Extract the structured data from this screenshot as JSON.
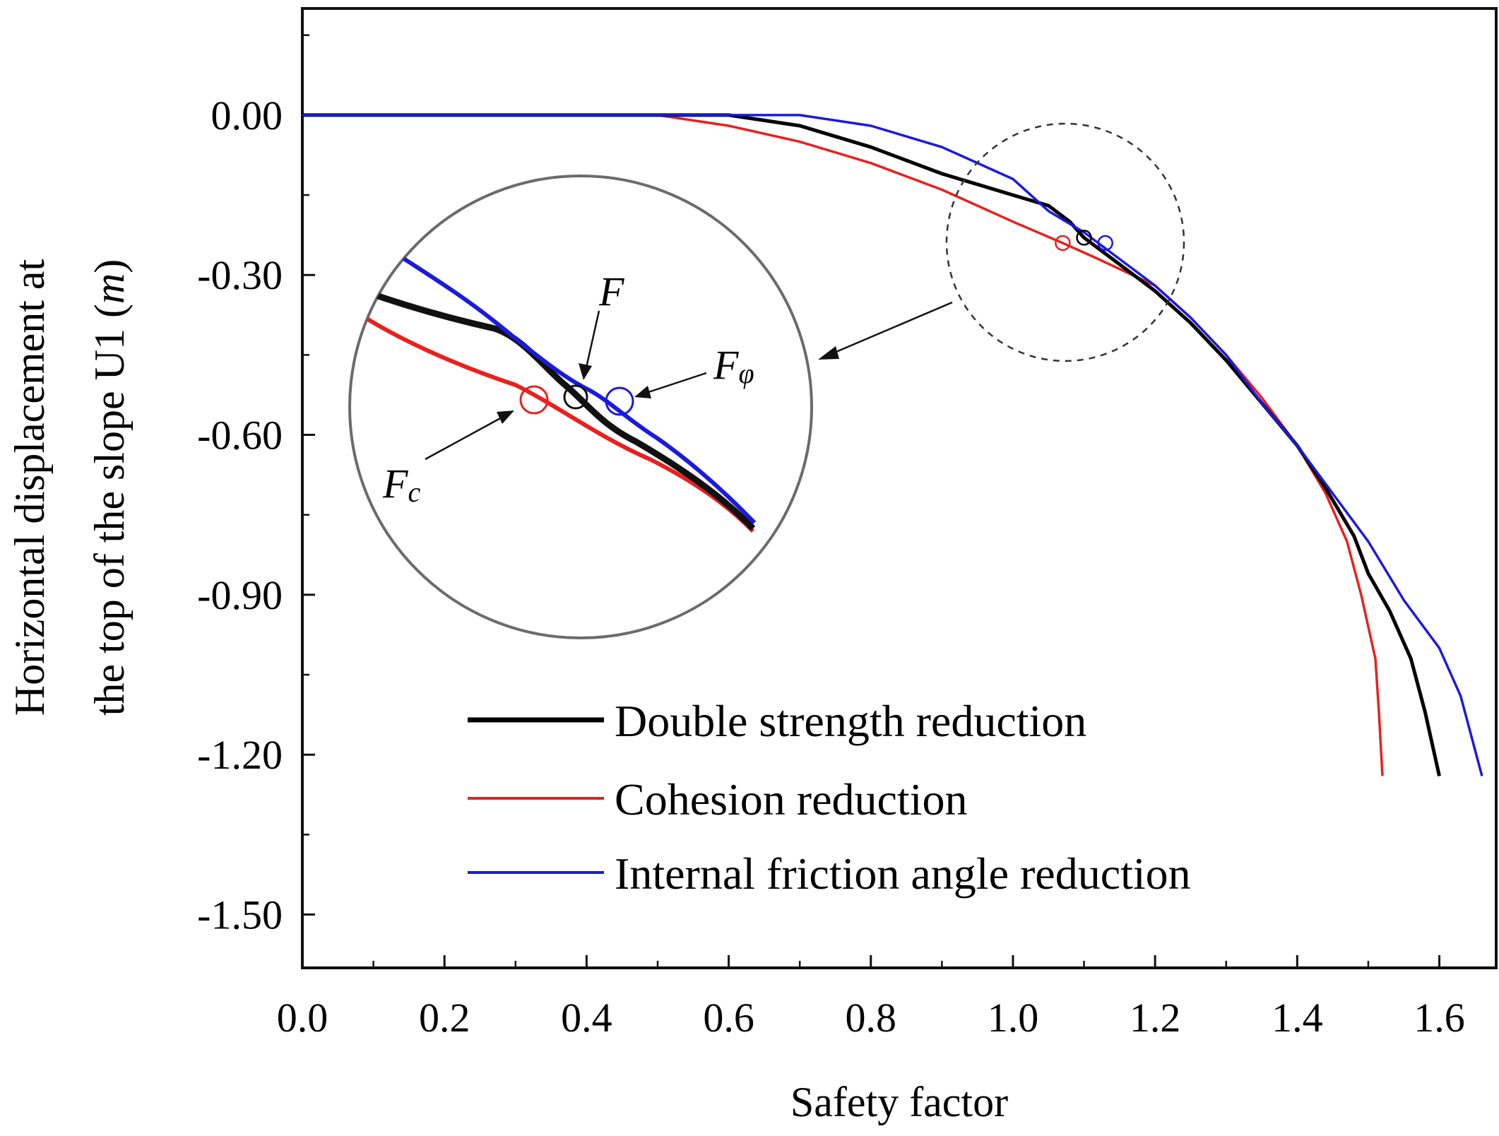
{
  "chart_data": {
    "type": "line",
    "title": "",
    "xlabel": "Safety factor",
    "ylabel_line1": "Horizontal displacement at",
    "ylabel_line2_prefix": "the top of the slope U1 (",
    "ylabel_unit": "m",
    "ylabel_line2_suffix": ")",
    "xlim": [
      0.0,
      1.68
    ],
    "ylim": [
      -1.6,
      0.2
    ],
    "xticks": [
      0.0,
      0.2,
      0.4,
      0.6,
      0.8,
      1.0,
      1.2,
      1.4,
      1.6
    ],
    "xtick_labels": [
      "0.0",
      "0.2",
      "0.4",
      "0.6",
      "0.8",
      "1.0",
      "1.2",
      "1.4",
      "1.6"
    ],
    "yticks": [
      0.0,
      -0.3,
      -0.6,
      -0.9,
      -1.2,
      -1.5
    ],
    "ytick_labels": [
      "0.00",
      "-0.30",
      "-0.60",
      "-0.90",
      "-1.20",
      "-1.50"
    ],
    "legend_position": "bottom-center",
    "series": [
      {
        "name": "Double strength reduction",
        "color": "#000000",
        "x": [
          0.0,
          0.4,
          0.6,
          0.7,
          0.8,
          0.9,
          1.0,
          1.05,
          1.08,
          1.1,
          1.12,
          1.15,
          1.2,
          1.25,
          1.3,
          1.35,
          1.4,
          1.44,
          1.48,
          1.5,
          1.53,
          1.56,
          1.58,
          1.6
        ],
        "y": [
          0.0,
          0.0,
          0.0,
          -0.02,
          -0.06,
          -0.11,
          -0.15,
          -0.17,
          -0.2,
          -0.23,
          -0.25,
          -0.28,
          -0.33,
          -0.39,
          -0.46,
          -0.54,
          -0.62,
          -0.7,
          -0.79,
          -0.86,
          -0.93,
          -1.02,
          -1.12,
          -1.24
        ]
      },
      {
        "name": "Cohesion reduction",
        "color": "#e8211f",
        "x": [
          0.0,
          0.4,
          0.5,
          0.6,
          0.7,
          0.8,
          0.9,
          1.0,
          1.07,
          1.12,
          1.2,
          1.25,
          1.3,
          1.35,
          1.4,
          1.44,
          1.47,
          1.49,
          1.51,
          1.515,
          1.52
        ],
        "y": [
          0.0,
          0.0,
          0.0,
          -0.02,
          -0.05,
          -0.09,
          -0.14,
          -0.2,
          -0.24,
          -0.27,
          -0.32,
          -0.38,
          -0.45,
          -0.53,
          -0.62,
          -0.71,
          -0.8,
          -0.9,
          -1.02,
          -1.12,
          -1.24
        ]
      },
      {
        "name": "Internal friction angle reduction",
        "color": "#1a1adf",
        "x": [
          0.0,
          0.6,
          0.7,
          0.8,
          0.9,
          1.0,
          1.05,
          1.1,
          1.13,
          1.16,
          1.2,
          1.25,
          1.3,
          1.35,
          1.4,
          1.45,
          1.5,
          1.55,
          1.6,
          1.63,
          1.66
        ],
        "y": [
          0.0,
          0.0,
          0.0,
          -0.02,
          -0.06,
          -0.12,
          -0.18,
          -0.22,
          -0.25,
          -0.28,
          -0.32,
          -0.38,
          -0.45,
          -0.54,
          -0.62,
          -0.71,
          -0.8,
          -0.91,
          -1.0,
          -1.09,
          -1.24
        ]
      }
    ],
    "annotations": {
      "markers": [
        {
          "label": "Fc",
          "x": 1.07,
          "y": -0.24,
          "color": "#e8211f"
        },
        {
          "label": "F",
          "x": 1.1,
          "y": -0.23,
          "color": "#000000"
        },
        {
          "label": "Fφ",
          "x": 1.13,
          "y": -0.24,
          "color": "#1a1adf"
        }
      ],
      "inset_labels": {
        "F": "F",
        "F_phi_main": "F",
        "F_phi_sub": "φ",
        "F_c_main": "F",
        "F_c_sub": "c"
      }
    }
  }
}
